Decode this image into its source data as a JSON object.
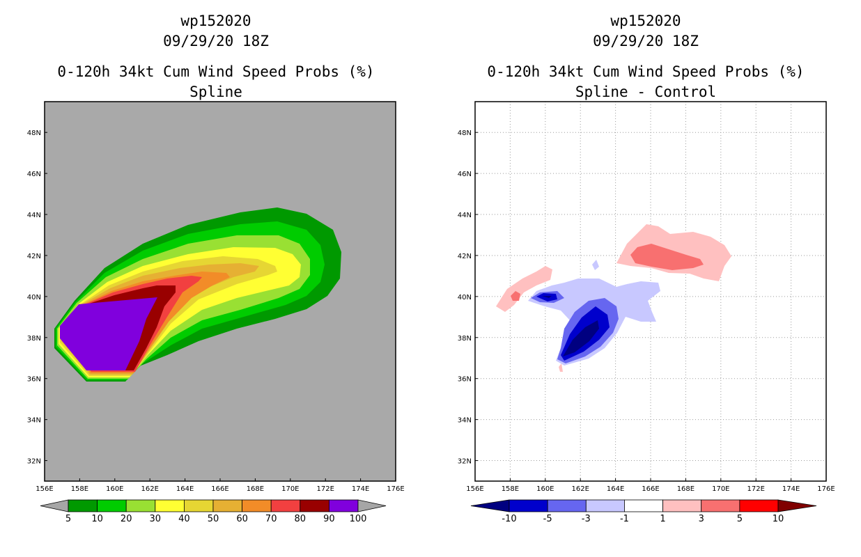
{
  "chart_data": [
    {
      "type": "heatmap",
      "storm_id": "wp152020",
      "datetime": "09/29/20 18Z",
      "title": "0-120h 34kt Cum Wind Speed Probs (%)",
      "subtitle": "Spline",
      "x_ticks": [
        "156E",
        "158E",
        "160E",
        "162E",
        "164E",
        "166E",
        "168E",
        "170E",
        "172E",
        "174E",
        "176E"
      ],
      "y_ticks": [
        "32N",
        "34N",
        "36N",
        "38N",
        "40N",
        "42N",
        "44N",
        "46N",
        "48N"
      ],
      "xlim": [
        156,
        176
      ],
      "ylim": [
        31,
        49.5
      ],
      "grid": false,
      "colorbar": {
        "levels": [
          "5",
          "10",
          "20",
          "30",
          "40",
          "50",
          "60",
          "70",
          "80",
          "90",
          "100"
        ],
        "colors": [
          "#009900",
          "#00cc00",
          "#99e033",
          "#ffff33",
          "#e6d633",
          "#e6b033",
          "#f28c28",
          "#f24040",
          "#990000",
          "#8000dd"
        ],
        "end_colors": [
          "#a6a6a6",
          "#a6a6a6"
        ]
      },
      "colors": {
        "background": "#a9a9a9"
      }
    },
    {
      "type": "heatmap",
      "storm_id": "wp152020",
      "datetime": "09/29/20 18Z",
      "title": "0-120h 34kt Cum Wind Speed Probs (%)",
      "subtitle": "Spline - Control",
      "x_ticks": [
        "156E",
        "158E",
        "160E",
        "162E",
        "164E",
        "166E",
        "168E",
        "170E",
        "172E",
        "174E",
        "176E"
      ],
      "y_ticks": [
        "32N",
        "34N",
        "36N",
        "38N",
        "40N",
        "42N",
        "44N",
        "46N",
        "48N"
      ],
      "xlim": [
        156,
        176
      ],
      "ylim": [
        31,
        49.5
      ],
      "grid": true,
      "colorbar": {
        "levels": [
          "-10",
          "-5",
          "-3",
          "-1",
          "1",
          "3",
          "5",
          "10"
        ],
        "colors": [
          "#0000cc",
          "#6666f0",
          "#c8c8ff",
          "#ffffff",
          "#ffc0c0",
          "#f87070",
          "#ff0000"
        ],
        "end_colors": [
          "#000080",
          "#800000"
        ]
      },
      "colors": {
        "background": "#ffffff"
      }
    }
  ]
}
